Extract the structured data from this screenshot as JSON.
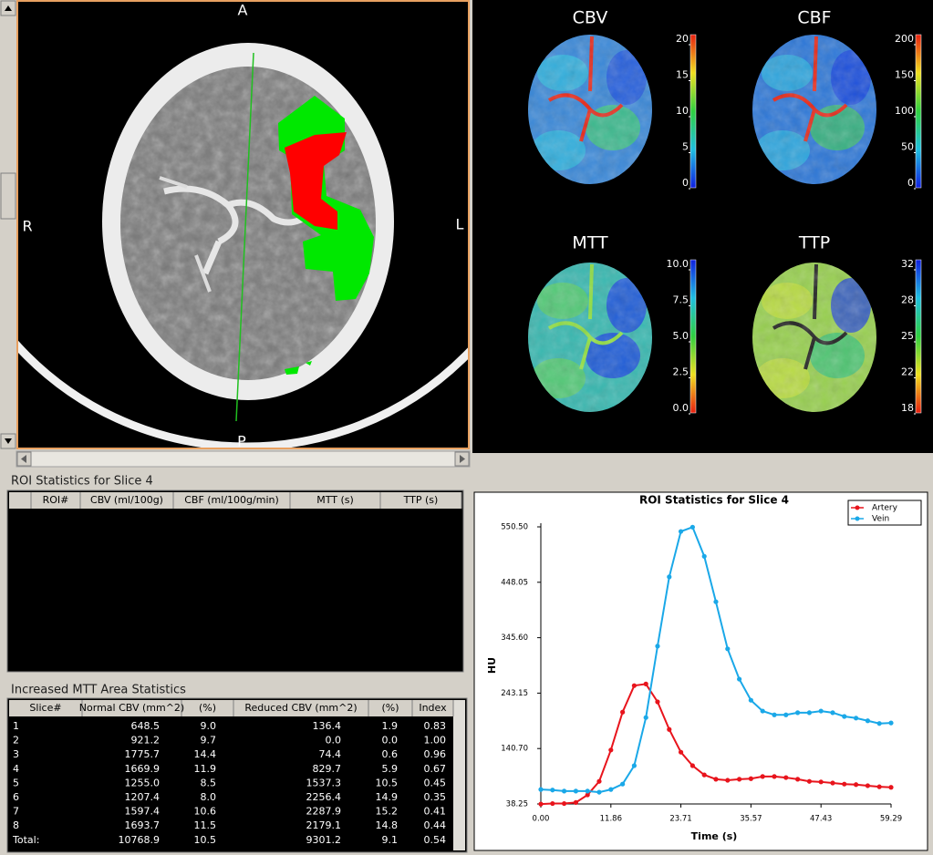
{
  "ct_viewer": {
    "labels": {
      "anterior": "A",
      "right": "R",
      "left": "L",
      "posterior": "P"
    }
  },
  "perfusion_maps": [
    {
      "title": "CBV",
      "ticks": [
        "20",
        "15",
        "10",
        "5",
        "0"
      ]
    },
    {
      "title": "CBF",
      "ticks": [
        "200",
        "150",
        "100",
        "50",
        "0"
      ]
    },
    {
      "title": "MTT",
      "ticks": [
        "10.0",
        "7.5",
        "5.0",
        "2.5",
        "0.0"
      ]
    },
    {
      "title": "TTP",
      "ticks": [
        "32",
        "28",
        "25",
        "22",
        "18"
      ]
    }
  ],
  "roi_table": {
    "title": "ROI Statistics for Slice 4",
    "columns": [
      "ROI#",
      "CBV (ml/100g)",
      "CBF (ml/100g/min)",
      "MTT (s)",
      "TTP (s)"
    ]
  },
  "mtt_table": {
    "title": "Increased MTT Area Statistics",
    "columns": [
      "Slice#",
      "Normal CBV (mm^2)",
      "(%)",
      "Reduced CBV (mm^2)",
      "(%)",
      "Index"
    ],
    "rows": [
      [
        "1",
        "648.5",
        "9.0",
        "136.4",
        "1.9",
        "0.83"
      ],
      [
        "2",
        "921.2",
        "9.7",
        "0.0",
        "0.0",
        "1.00"
      ],
      [
        "3",
        "1775.7",
        "14.4",
        "74.4",
        "0.6",
        "0.96"
      ],
      [
        "4",
        "1669.9",
        "11.9",
        "829.7",
        "5.9",
        "0.67"
      ],
      [
        "5",
        "1255.0",
        "8.5",
        "1537.3",
        "10.5",
        "0.45"
      ],
      [
        "6",
        "1207.4",
        "8.0",
        "2256.4",
        "14.9",
        "0.35"
      ],
      [
        "7",
        "1597.4",
        "10.6",
        "2287.9",
        "15.2",
        "0.41"
      ],
      [
        "8",
        "1693.7",
        "11.5",
        "2179.1",
        "14.8",
        "0.44"
      ],
      [
        "Total:",
        "10768.9",
        "10.5",
        "9301.2",
        "9.1",
        "0.54"
      ]
    ]
  },
  "chart_data": {
    "type": "line",
    "title": "ROI Statistics for Slice 4",
    "x_label": "Time (s)",
    "y_label": "HU",
    "x": [
      0,
      1.98,
      3.95,
      5.93,
      7.91,
      9.88,
      11.86,
      13.84,
      15.81,
      17.79,
      19.76,
      21.74,
      23.71,
      25.69,
      27.67,
      29.64,
      31.62,
      33.6,
      35.57,
      37.55,
      39.53,
      41.5,
      43.48,
      45.46,
      47.43,
      49.41,
      51.38,
      53.36,
      55.34,
      57.31,
      59.29
    ],
    "series": [
      {
        "name": "Artery",
        "color": "#e8141c",
        "values": [
          38,
          39,
          39,
          41,
          55,
          80,
          138,
          208,
          257,
          260,
          227,
          176,
          134,
          109,
          92,
          84,
          82,
          84,
          85,
          89,
          89,
          87,
          84,
          80,
          79,
          77,
          75,
          74,
          72,
          70,
          69
        ]
      },
      {
        "name": "Vein",
        "color": "#1aa8e8",
        "values": [
          65,
          64,
          62,
          62,
          62,
          60,
          65,
          75,
          109,
          198,
          330,
          458,
          542,
          550,
          496,
          412,
          325,
          269,
          230,
          210,
          203,
          203,
          207,
          207,
          210,
          207,
          200,
          197,
          192,
          187,
          188
        ]
      }
    ],
    "xlim": [
      0,
      59.29
    ],
    "ylim": [
      38.25,
      550.5
    ],
    "xticks": [
      {
        "value": 0,
        "label": "0.00"
      },
      11.86,
      23.71,
      35.57,
      47.43,
      59.29
    ],
    "yticks": [
      38.25,
      {
        "value": 140.7,
        "label": "140.70"
      },
      243.15,
      {
        "value": 345.6,
        "label": "345.60"
      },
      448.05,
      {
        "value": 550.5,
        "label": "550.50"
      }
    ],
    "legend": "upper right"
  }
}
